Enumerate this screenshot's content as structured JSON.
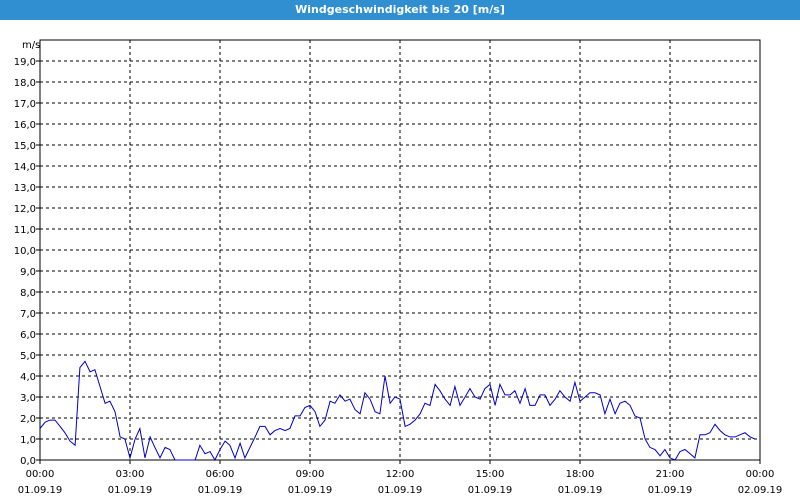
{
  "window": {
    "title": "Windgeschwindigkeit bis 20 [m/s]"
  },
  "chart_data": {
    "type": "line",
    "title": "Windgeschwindigkeit bis 20 [m/s]",
    "ylabel": "m/s",
    "xlabel": "",
    "ylim": [
      0,
      20
    ],
    "xlim_hours": [
      0,
      24
    ],
    "grid": true,
    "line_color": "#0000cc",
    "y_ticks": [
      "0,0",
      "1,0",
      "2,0",
      "3,0",
      "4,0",
      "5,0",
      "6,0",
      "7,0",
      "8,0",
      "9,0",
      "10,0",
      "11,0",
      "12,0",
      "13,0",
      "14,0",
      "15,0",
      "16,0",
      "17,0",
      "18,0",
      "19,0"
    ],
    "x_ticks": [
      {
        "time": "00:00",
        "date": "01.09.19"
      },
      {
        "time": "03:00",
        "date": "01.09.19"
      },
      {
        "time": "06:00",
        "date": "01.09.19"
      },
      {
        "time": "09:00",
        "date": "01.09.19"
      },
      {
        "time": "12:00",
        "date": "01.09.19"
      },
      {
        "time": "15:00",
        "date": "01.09.19"
      },
      {
        "time": "18:00",
        "date": "01.09.19"
      },
      {
        "time": "21:00",
        "date": "01.09.19"
      },
      {
        "time": "00:00",
        "date": "02.09.19"
      }
    ],
    "series": [
      {
        "values": [
          [
            0.0,
            1.5
          ],
          [
            0.17,
            1.8
          ],
          [
            0.33,
            1.9
          ],
          [
            0.5,
            1.9
          ],
          [
            0.67,
            1.6
          ],
          [
            0.83,
            1.3
          ],
          [
            1.0,
            0.9
          ],
          [
            1.17,
            0.7
          ],
          [
            1.33,
            4.4
          ],
          [
            1.5,
            4.7
          ],
          [
            1.67,
            4.2
          ],
          [
            1.83,
            4.3
          ],
          [
            2.0,
            3.5
          ],
          [
            2.17,
            2.7
          ],
          [
            2.33,
            2.8
          ],
          [
            2.5,
            2.3
          ],
          [
            2.67,
            1.1
          ],
          [
            2.83,
            1.0
          ],
          [
            3.0,
            0.1
          ],
          [
            3.17,
            1.0
          ],
          [
            3.33,
            1.5
          ],
          [
            3.5,
            0.1
          ],
          [
            3.67,
            1.1
          ],
          [
            3.83,
            0.6
          ],
          [
            4.0,
            0.1
          ],
          [
            4.17,
            0.6
          ],
          [
            4.33,
            0.5
          ],
          [
            4.5,
            0.0
          ],
          [
            4.67,
            0.0
          ],
          [
            4.83,
            0.0
          ],
          [
            5.0,
            0.0
          ],
          [
            5.17,
            0.0
          ],
          [
            5.33,
            0.7
          ],
          [
            5.5,
            0.3
          ],
          [
            5.67,
            0.4
          ],
          [
            5.83,
            0.0
          ],
          [
            6.0,
            0.5
          ],
          [
            6.17,
            0.9
          ],
          [
            6.33,
            0.7
          ],
          [
            6.5,
            0.1
          ],
          [
            6.67,
            0.8
          ],
          [
            6.83,
            0.1
          ],
          [
            7.0,
            0.6
          ],
          [
            7.17,
            1.1
          ],
          [
            7.33,
            1.6
          ],
          [
            7.5,
            1.6
          ],
          [
            7.67,
            1.2
          ],
          [
            7.83,
            1.4
          ],
          [
            8.0,
            1.5
          ],
          [
            8.17,
            1.4
          ],
          [
            8.33,
            1.5
          ],
          [
            8.5,
            2.1
          ],
          [
            8.67,
            2.1
          ],
          [
            8.83,
            2.5
          ],
          [
            9.0,
            2.6
          ],
          [
            9.17,
            2.3
          ],
          [
            9.33,
            1.6
          ],
          [
            9.5,
            1.9
          ],
          [
            9.67,
            2.8
          ],
          [
            9.83,
            2.7
          ],
          [
            10.0,
            3.1
          ],
          [
            10.17,
            2.8
          ],
          [
            10.33,
            2.9
          ],
          [
            10.5,
            2.4
          ],
          [
            10.67,
            2.2
          ],
          [
            10.83,
            3.2
          ],
          [
            11.0,
            2.9
          ],
          [
            11.17,
            2.3
          ],
          [
            11.33,
            2.2
          ],
          [
            11.5,
            4.0
          ],
          [
            11.67,
            2.7
          ],
          [
            11.83,
            3.0
          ],
          [
            12.0,
            2.9
          ],
          [
            12.17,
            1.6
          ],
          [
            12.33,
            1.7
          ],
          [
            12.5,
            1.9
          ],
          [
            12.67,
            2.2
          ],
          [
            12.83,
            2.7
          ],
          [
            13.0,
            2.6
          ],
          [
            13.17,
            3.6
          ],
          [
            13.33,
            3.3
          ],
          [
            13.5,
            2.9
          ],
          [
            13.67,
            2.6
          ],
          [
            13.83,
            3.5
          ],
          [
            14.0,
            2.6
          ],
          [
            14.17,
            3.0
          ],
          [
            14.33,
            3.4
          ],
          [
            14.5,
            3.0
          ],
          [
            14.67,
            2.9
          ],
          [
            14.83,
            3.4
          ],
          [
            15.0,
            3.6
          ],
          [
            15.17,
            2.6
          ],
          [
            15.33,
            3.6
          ],
          [
            15.5,
            3.1
          ],
          [
            15.67,
            3.1
          ],
          [
            15.83,
            3.3
          ],
          [
            16.0,
            2.7
          ],
          [
            16.17,
            3.4
          ],
          [
            16.33,
            2.6
          ],
          [
            16.5,
            2.6
          ],
          [
            16.67,
            3.1
          ],
          [
            16.83,
            3.1
          ],
          [
            17.0,
            2.6
          ],
          [
            17.17,
            2.9
          ],
          [
            17.33,
            3.3
          ],
          [
            17.5,
            3.0
          ],
          [
            17.67,
            2.8
          ],
          [
            17.83,
            3.7
          ],
          [
            18.0,
            2.8
          ],
          [
            18.17,
            3.0
          ],
          [
            18.33,
            3.2
          ],
          [
            18.5,
            3.2
          ],
          [
            18.67,
            3.1
          ],
          [
            18.83,
            2.2
          ],
          [
            19.0,
            2.9
          ],
          [
            19.17,
            2.2
          ],
          [
            19.33,
            2.7
          ],
          [
            19.5,
            2.8
          ],
          [
            19.67,
            2.6
          ],
          [
            19.83,
            2.1
          ],
          [
            20.0,
            2.0
          ],
          [
            20.17,
            1.0
          ],
          [
            20.33,
            0.6
          ],
          [
            20.5,
            0.5
          ],
          [
            20.67,
            0.2
          ],
          [
            20.83,
            0.5
          ],
          [
            21.0,
            0.1
          ],
          [
            21.17,
            0.0
          ],
          [
            21.33,
            0.4
          ],
          [
            21.5,
            0.5
          ],
          [
            21.67,
            0.3
          ],
          [
            21.83,
            0.1
          ],
          [
            22.0,
            1.2
          ],
          [
            22.17,
            1.2
          ],
          [
            22.33,
            1.3
          ],
          [
            22.5,
            1.7
          ],
          [
            22.67,
            1.4
          ],
          [
            22.83,
            1.2
          ],
          [
            23.0,
            1.1
          ],
          [
            23.17,
            1.1
          ],
          [
            23.33,
            1.2
          ],
          [
            23.5,
            1.3
          ],
          [
            23.67,
            1.1
          ],
          [
            23.83,
            1.0
          ]
        ]
      }
    ]
  }
}
